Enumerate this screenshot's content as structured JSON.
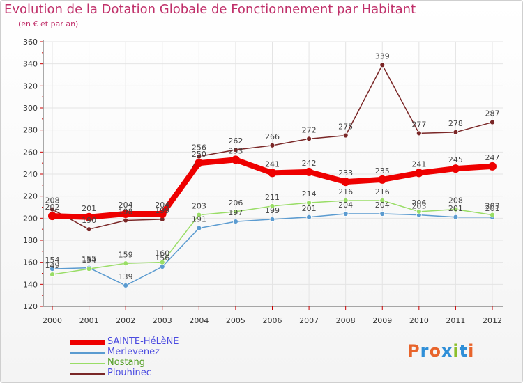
{
  "header": {
    "title": "Evolution de la Dotation Globale de Fonctionnement par Habitant",
    "subtitle": "(en € et par an)"
  },
  "brand": {
    "text": "Proxiti",
    "colors": [
      "#e8642b",
      "#2f8fd8",
      "#e8642b",
      "#2f8fd8",
      "#8bbf2b",
      "#2f8fd8",
      "#e8642b"
    ]
  },
  "chart_data": {
    "type": "line",
    "title": "Evolution de la Dotation Globale de Fonctionnement par Habitant",
    "subtitle": "(en € et par an)",
    "xlabel": "",
    "ylabel": "",
    "ylim": [
      120,
      360
    ],
    "yticks": [
      120,
      140,
      160,
      180,
      200,
      220,
      240,
      260,
      280,
      300,
      320,
      340,
      360
    ],
    "grid": true,
    "legend_position": "bottom-left",
    "categories": [
      "2000",
      "2001",
      "2002",
      "2003",
      "2004",
      "2005",
      "2006",
      "2007",
      "2008",
      "2009",
      "2010",
      "2011",
      "2012"
    ],
    "series": [
      {
        "name": "SAINTE-HéLèNE",
        "color": "#ee0000",
        "emphasis": true,
        "values": [
          202,
          201,
          204,
          204,
          250,
          253,
          241,
          242,
          233,
          235,
          241,
          245,
          247
        ],
        "labels": [
          "202",
          "201",
          "204",
          "204",
          "250",
          "253",
          "241",
          "242",
          "233",
          "235",
          "241",
          "245",
          "247"
        ]
      },
      {
        "name": "Merlevenez",
        "color": "#5b9bd0",
        "emphasis": false,
        "values": [
          154,
          155,
          139,
          156,
          191,
          197,
          199,
          201,
          204,
          204,
          203,
          201,
          201
        ],
        "labels": [
          "154",
          "155",
          "139",
          "156",
          "191",
          "197",
          "199",
          "201",
          "204",
          "204",
          "203",
          "201",
          "201"
        ]
      },
      {
        "name": "Nostang",
        "color": "#99dd66",
        "emphasis": false,
        "values": [
          149,
          154,
          159,
          160,
          203,
          206,
          211,
          214,
          216,
          216,
          206,
          208,
          203
        ],
        "labels": [
          "149",
          "154",
          "159",
          "160",
          "203",
          "206",
          "211",
          "214",
          "216",
          "216",
          "206",
          "208",
          "203"
        ]
      },
      {
        "name": "Plouhinec",
        "color": "#7a2727",
        "emphasis": false,
        "values": [
          208,
          190,
          198,
          199,
          256,
          262,
          266,
          272,
          275,
          339,
          277,
          278,
          287
        ],
        "labels": [
          "208",
          "190",
          "198",
          "199",
          "256",
          "262",
          "266",
          "272",
          "275",
          "339",
          "277",
          "278",
          "287"
        ]
      }
    ]
  }
}
